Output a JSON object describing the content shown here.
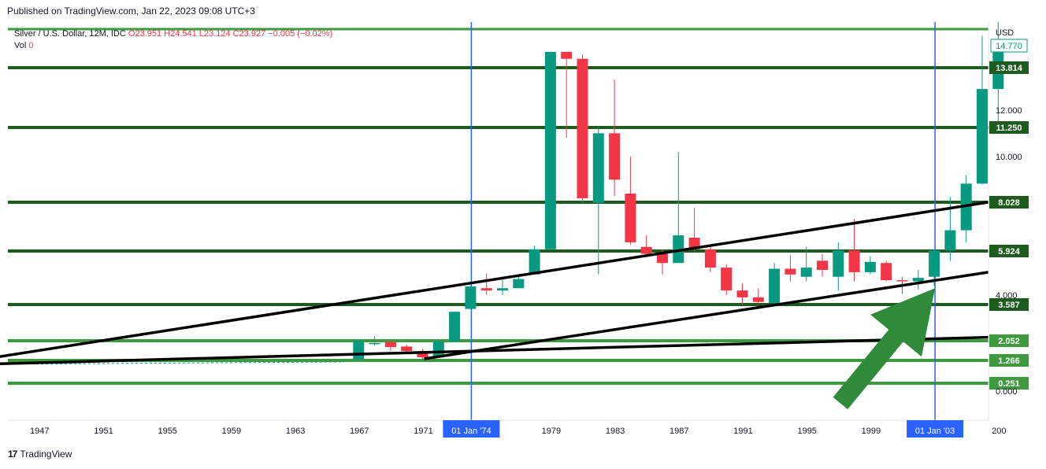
{
  "published_text": "Published on TradingView.com, Jan 22, 2023 09:08 UTC+3",
  "legend": {
    "symbol": "Silver / U.S. Dollar, 12M, IDC",
    "ohlc": "O23.951  H24.541  L23.124  C23.927  −0.005 (−0.02%)",
    "vol_label": "Vol",
    "vol_value": "0"
  },
  "footer": {
    "logo_glyph": "17",
    "brand": "TradingView"
  },
  "chart_data": {
    "type": "candlestick",
    "currency": "USD",
    "last_price": "14.770",
    "colors": {
      "up": "#089981",
      "down": "#f23645",
      "level_dark": "#1e5b1e",
      "level_light": "#3f9a3f",
      "trendline": "#000000",
      "vertical_line": "#2962ff",
      "arrow": "#2f8a39"
    },
    "x_ticks": [
      "1947",
      "1951",
      "1955",
      "1959",
      "1963",
      "1967",
      "1971",
      "01 Jan '74",
      "1979",
      "1983",
      "1987",
      "1991",
      "1995",
      "1999",
      "01 Jan '03",
      "200"
    ],
    "highlight_ticks": [
      "01 Jan '74",
      "01 Jan '03"
    ],
    "y_ticks": [
      "12.000",
      "10.000",
      "4.000",
      "0.000"
    ],
    "levels": [
      {
        "label": "13.814",
        "style": "dark"
      },
      {
        "label": "11.250",
        "style": "dark"
      },
      {
        "label": "8.028",
        "style": "dark"
      },
      {
        "label": "5.924",
        "style": "dark"
      },
      {
        "label": "3.587",
        "style": "dark"
      },
      {
        "label": "2.052",
        "style": "light"
      },
      {
        "label": "1.266",
        "style": "light"
      },
      {
        "label": "0.251",
        "style": "light"
      }
    ],
    "candles": [
      {
        "year": 1967,
        "o": 1.3,
        "h": 2.05,
        "l": 1.3,
        "c": 2.05
      },
      {
        "year": 1968,
        "o": 1.93,
        "h": 2.25,
        "l": 1.85,
        "c": 1.96
      },
      {
        "year": 1969,
        "o": 2.0,
        "h": 2.05,
        "l": 1.65,
        "c": 1.8
      },
      {
        "year": 1970,
        "o": 1.82,
        "h": 1.9,
        "l": 1.58,
        "c": 1.64
      },
      {
        "year": 1971,
        "o": 1.64,
        "h": 1.72,
        "l": 1.33,
        "c": 1.39
      },
      {
        "year": 1972,
        "o": 1.39,
        "h": 2.1,
        "l": 1.39,
        "c": 2.02
      },
      {
        "year": 1973,
        "o": 2.02,
        "h": 3.3,
        "l": 2.02,
        "c": 3.28
      },
      {
        "year": 1974,
        "o": 3.4,
        "h": 4.4,
        "l": 3.4,
        "c": 4.38
      },
      {
        "year": 1975,
        "o": 4.3,
        "h": 4.95,
        "l": 4.0,
        "c": 4.2
      },
      {
        "year": 1976,
        "o": 4.2,
        "h": 4.8,
        "l": 4.0,
        "c": 4.3
      },
      {
        "year": 1977,
        "o": 4.3,
        "h": 4.8,
        "l": 4.3,
        "c": 4.7
      },
      {
        "year": 1978,
        "o": 4.9,
        "h": 6.15,
        "l": 4.9,
        "c": 6.0
      },
      {
        "year": 1979,
        "o": 6.0,
        "h": 14.5,
        "l": 6.0,
        "c": 14.5
      },
      {
        "year": 1980,
        "o": 14.5,
        "h": 14.5,
        "l": 10.8,
        "c": 14.2
      },
      {
        "year": 1981,
        "o": 14.2,
        "h": 14.4,
        "l": 8.0,
        "c": 8.2
      },
      {
        "year": 1982,
        "o": 8.0,
        "h": 11.3,
        "l": 4.9,
        "c": 11.0
      },
      {
        "year": 1983,
        "o": 11.0,
        "h": 13.3,
        "l": 8.3,
        "c": 9.0
      },
      {
        "year": 1984,
        "o": 8.4,
        "h": 10.0,
        "l": 6.2,
        "c": 6.3
      },
      {
        "year": 1985,
        "o": 6.1,
        "h": 6.6,
        "l": 5.7,
        "c": 5.8
      },
      {
        "year": 1986,
        "o": 5.8,
        "h": 6.0,
        "l": 4.9,
        "c": 5.4
      },
      {
        "year": 1987,
        "o": 5.4,
        "h": 10.2,
        "l": 5.4,
        "c": 6.6
      },
      {
        "year": 1988,
        "o": 6.5,
        "h": 7.8,
        "l": 5.9,
        "c": 6.0
      },
      {
        "year": 1989,
        "o": 6.0,
        "h": 6.1,
        "l": 5.0,
        "c": 5.2
      },
      {
        "year": 1990,
        "o": 5.2,
        "h": 5.35,
        "l": 4.0,
        "c": 4.2
      },
      {
        "year": 1991,
        "o": 4.2,
        "h": 4.5,
        "l": 3.6,
        "c": 3.9
      },
      {
        "year": 1992,
        "o": 3.9,
        "h": 4.3,
        "l": 3.6,
        "c": 3.7
      },
      {
        "year": 1993,
        "o": 3.65,
        "h": 5.4,
        "l": 3.55,
        "c": 5.15
      },
      {
        "year": 1994,
        "o": 5.15,
        "h": 5.75,
        "l": 4.6,
        "c": 4.9
      },
      {
        "year": 1995,
        "o": 4.8,
        "h": 6.1,
        "l": 4.6,
        "c": 5.2
      },
      {
        "year": 1996,
        "o": 5.5,
        "h": 5.8,
        "l": 4.8,
        "c": 5.1
      },
      {
        "year": 1997,
        "o": 4.8,
        "h": 6.3,
        "l": 4.2,
        "c": 5.95
      },
      {
        "year": 1998,
        "o": 5.95,
        "h": 7.3,
        "l": 4.6,
        "c": 5.0
      },
      {
        "year": 1999,
        "o": 5.0,
        "h": 5.7,
        "l": 4.9,
        "c": 5.45
      },
      {
        "year": 2000,
        "o": 5.4,
        "h": 5.5,
        "l": 4.6,
        "c": 4.65
      },
      {
        "year": 2001,
        "o": 4.65,
        "h": 4.8,
        "l": 4.05,
        "c": 4.6
      },
      {
        "year": 2002,
        "o": 4.6,
        "h": 5.1,
        "l": 4.25,
        "c": 4.75
      },
      {
        "year": 2003,
        "o": 4.8,
        "h": 6.0,
        "l": 4.4,
        "c": 5.95
      },
      {
        "year": 2004,
        "o": 5.95,
        "h": 8.25,
        "l": 5.5,
        "c": 6.82
      },
      {
        "year": 2005,
        "o": 6.82,
        "h": 9.2,
        "l": 6.3,
        "c": 8.83
      },
      {
        "year": 2006,
        "o": 8.83,
        "h": 15.2,
        "l": 8.8,
        "c": 12.9
      },
      {
        "year": 2007,
        "o": 12.9,
        "h": 15.8,
        "l": 11.5,
        "c": 14.77
      }
    ],
    "trendlines": [
      {
        "from": {
          "year": 1941,
          "price": 1.05
        },
        "to": {
          "year": 2007,
          "price": 8.03
        }
      },
      {
        "from": {
          "year": 1971,
          "price": 1.33
        },
        "to": {
          "year": 2007,
          "price": 5.0
        }
      },
      {
        "from": {
          "year": 1941,
          "price": 1.05
        },
        "to": {
          "year": 2007,
          "price": 2.2
        }
      }
    ],
    "vertical_lines": [
      {
        "year": 1974
      },
      {
        "year": 2003
      }
    ],
    "arrow": {
      "from": {
        "year": 1999,
        "price": -0.4
      },
      "to": {
        "year": 2003,
        "price": 4.3
      }
    }
  }
}
